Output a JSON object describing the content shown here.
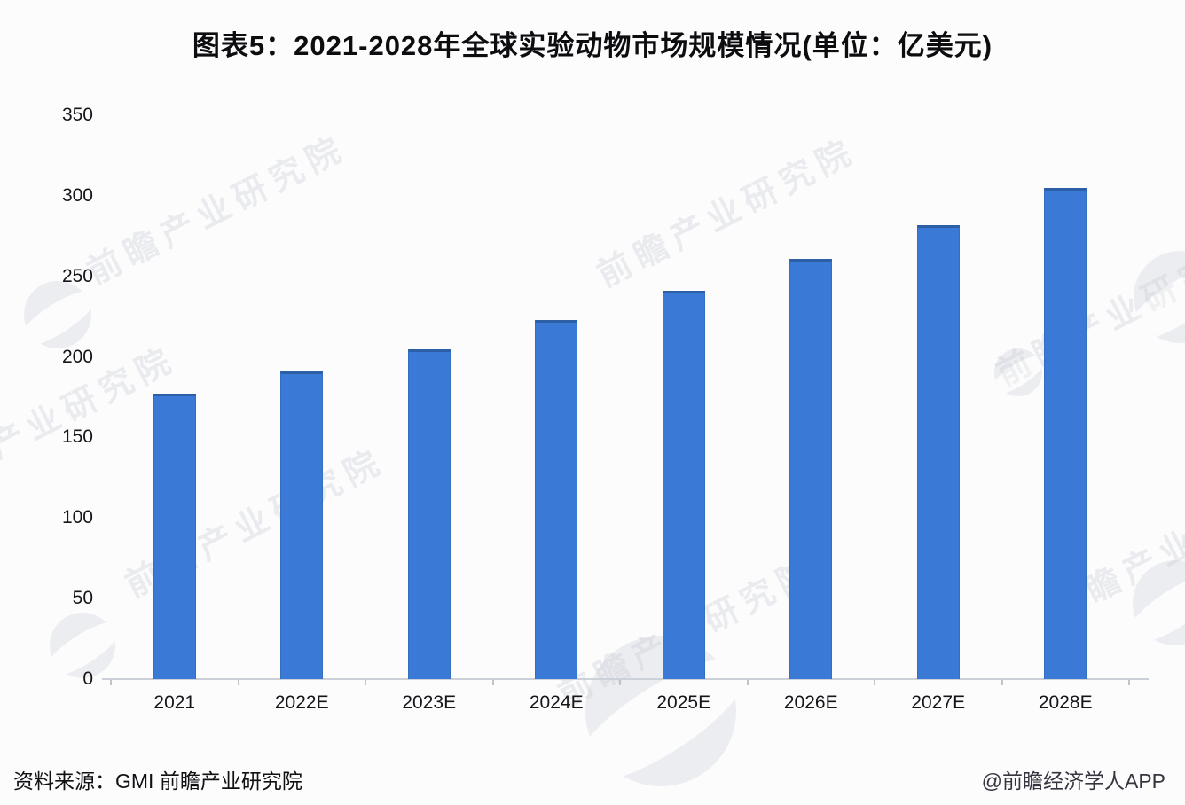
{
  "title": "图表5：2021-2028年全球实验动物市场规模情况(单位：亿美元)",
  "chart_data": {
    "type": "bar",
    "title": "图表5：2021-2028年全球实验动物市场规模情况(单位：亿美元)",
    "unit_label": "亿美元",
    "categories": [
      "2021",
      "2022E",
      "2023E",
      "2024E",
      "2025E",
      "2026E",
      "2027E",
      "2028E"
    ],
    "values": [
      177,
      191,
      205,
      223,
      241,
      261,
      282,
      305
    ],
    "xlabel": "",
    "ylabel": "",
    "ylim": [
      0,
      350
    ],
    "yticks": [
      0,
      50,
      100,
      150,
      200,
      250,
      300,
      350
    ],
    "grid": false,
    "legend_position": "none",
    "bar_color": "#3a7ad6"
  },
  "footer": {
    "source": "资料来源：GMI 前瞻产业研究院",
    "credit": "@前瞻经济学人APP"
  },
  "watermark": {
    "text": "前瞻产业研究院",
    "logo": "qianzhan-circle-logo"
  }
}
